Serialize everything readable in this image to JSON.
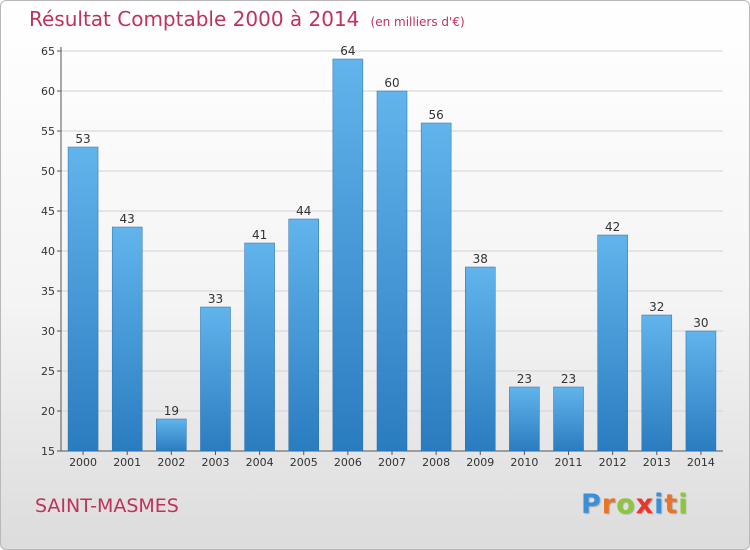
{
  "header": {
    "title": "Résultat Comptable 2000 à 2014",
    "unit": "(en milliers d'€)"
  },
  "footer": {
    "place": "SAINT-MASMES",
    "brand_letters": [
      "P",
      "r",
      "o",
      "x",
      "i",
      "t",
      "i"
    ],
    "brand_colors": [
      "#3a8fd8",
      "#e8742c",
      "#8cc63e",
      "#e8362c",
      "#3a8fd8",
      "#e8742c",
      "#8cc63e"
    ]
  },
  "colors": {
    "bar_top": "#62b4ec",
    "bar_bottom": "#2a7cc0",
    "title": "#c0325a"
  },
  "chart_data": {
    "type": "bar",
    "title": "Résultat Comptable 2000 à 2014",
    "subtitle": "(en milliers d'€)",
    "xlabel": "",
    "ylabel": "",
    "categories": [
      "2000",
      "2001",
      "2002",
      "2003",
      "2004",
      "2005",
      "2006",
      "2007",
      "2008",
      "2009",
      "2010",
      "2011",
      "2012",
      "2013",
      "2014"
    ],
    "values": [
      53,
      43,
      19,
      33,
      41,
      44,
      64,
      60,
      56,
      38,
      23,
      23,
      42,
      32,
      30
    ],
    "ylim": [
      15,
      65
    ],
    "yticks": [
      15,
      20,
      25,
      30,
      35,
      40,
      45,
      50,
      55,
      60,
      65
    ],
    "grid": true
  }
}
